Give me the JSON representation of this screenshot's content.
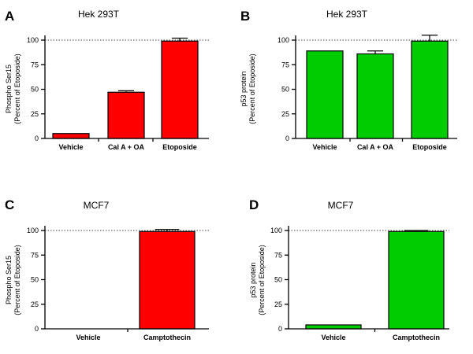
{
  "chart_data": [
    {
      "panel": "A",
      "type": "bar",
      "title": "Hek 293T",
      "ylabel_lines": [
        "Phospho Ser15",
        "(Percent of Etoposide)"
      ],
      "categories": [
        "Vehicle",
        "Cal A + OA",
        "Etoposide"
      ],
      "values": [
        5,
        47,
        99
      ],
      "errors": [
        0,
        1.5,
        3
      ],
      "ylim": [
        0,
        100
      ],
      "yticks": [
        0,
        25,
        50,
        75,
        100
      ],
      "reference_line": 100,
      "color": "#ff0000"
    },
    {
      "panel": "B",
      "type": "bar",
      "title": "Hek 293T",
      "ylabel_lines": [
        "p53 protein",
        "(Percent of Etoposide)"
      ],
      "categories": [
        "Vehicle",
        "Cal A + OA",
        "Etoposide"
      ],
      "values": [
        89,
        86,
        99
      ],
      "errors": [
        0,
        3,
        6
      ],
      "ylim": [
        0,
        100
      ],
      "yticks": [
        0,
        25,
        50,
        75,
        100
      ],
      "reference_line": 100,
      "color": "#00cc00"
    },
    {
      "panel": "C",
      "type": "bar",
      "title": "MCF7",
      "ylabel_lines": [
        "Phospho Ser15",
        "(Percent of Etoposide)"
      ],
      "categories": [
        "Vehicle",
        "Camptothecin"
      ],
      "values": [
        0,
        99
      ],
      "errors": [
        0,
        2
      ],
      "ylim": [
        0,
        100
      ],
      "yticks": [
        0,
        25,
        50,
        75,
        100
      ],
      "reference_line": 100,
      "color": "#ff0000"
    },
    {
      "panel": "D",
      "type": "bar",
      "title": "MCF7",
      "ylabel_lines": [
        "p53 protein",
        "(Percent of Etoposide)"
      ],
      "categories": [
        "Vehicle",
        "Camptothecin"
      ],
      "values": [
        4,
        99
      ],
      "errors": [
        0,
        1
      ],
      "ylim": [
        0,
        100
      ],
      "yticks": [
        0,
        25,
        50,
        75,
        100
      ],
      "reference_line": 100,
      "color": "#00cc00"
    }
  ]
}
